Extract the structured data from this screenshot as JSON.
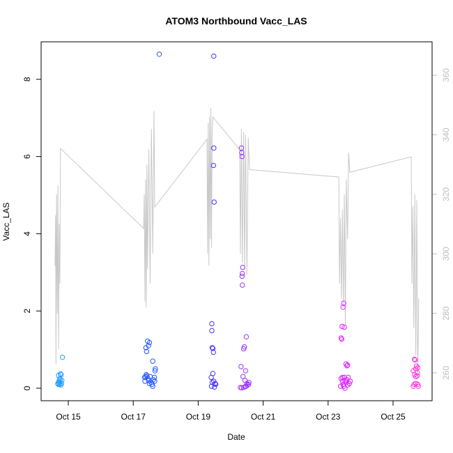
{
  "chart_data": {
    "type": "scatter",
    "title": "ATOM3 Northbound Vacc_LAS",
    "xlabel": "Date",
    "ylabel": "Vacc_LAS",
    "x_unit": "day of October",
    "xlim": [
      14.16,
      26.2
    ],
    "ylim": [
      -0.32,
      8.97
    ],
    "y2lim": [
      250.6,
      371
    ],
    "x_ticks": [
      {
        "value": 15,
        "label": "Oct 15"
      },
      {
        "value": 17,
        "label": "Oct 17"
      },
      {
        "value": 19,
        "label": "Oct 19"
      },
      {
        "value": 21,
        "label": "Oct 21"
      },
      {
        "value": 23,
        "label": "Oct 23"
      },
      {
        "value": 25,
        "label": "Oct 25"
      }
    ],
    "y_ticks": [
      "0",
      "2",
      "4",
      "6",
      "8"
    ],
    "y2_ticks": [
      "260",
      "280",
      "300",
      "320",
      "340",
      "360"
    ],
    "grid": false,
    "legend": "none",
    "point_series": [
      {
        "color": "#1E9BFF",
        "points": [
          [
            14.82,
            0.8
          ],
          [
            14.7,
            0.33
          ],
          [
            14.76,
            0.37
          ],
          [
            14.78,
            0.35
          ],
          [
            14.72,
            0.15
          ],
          [
            14.74,
            0.25
          ],
          [
            14.68,
            0.12
          ],
          [
            14.73,
            0.1
          ],
          [
            14.8,
            0.2
          ],
          [
            14.77,
            0.08
          ],
          [
            14.71,
            0.18
          ],
          [
            14.79,
            0.12
          ],
          [
            14.75,
            0.22
          ],
          [
            14.69,
            0.1
          ]
        ]
      },
      {
        "color": "#2255FF",
        "points": [
          [
            17.8,
            8.65
          ],
          [
            17.44,
            1.22
          ],
          [
            17.5,
            1.18
          ],
          [
            17.47,
            1.1
          ],
          [
            17.39,
            1.05
          ],
          [
            17.41,
            0.95
          ],
          [
            17.6,
            0.7
          ],
          [
            17.68,
            0.5
          ],
          [
            17.67,
            0.45
          ],
          [
            17.35,
            0.28
          ],
          [
            17.38,
            0.3
          ],
          [
            17.42,
            0.32
          ],
          [
            17.45,
            0.25
          ],
          [
            17.48,
            0.2
          ],
          [
            17.52,
            0.3
          ],
          [
            17.55,
            0.15
          ],
          [
            17.58,
            0.1
          ],
          [
            17.62,
            0.22
          ],
          [
            17.65,
            0.28
          ],
          [
            17.36,
            0.18
          ],
          [
            17.4,
            0.35
          ],
          [
            17.5,
            0.12
          ],
          [
            17.6,
            0.05
          ],
          [
            17.66,
            0.18
          ]
        ]
      },
      {
        "color": "#4433FF",
        "points": [
          [
            19.48,
            8.6
          ],
          [
            19.48,
            6.22
          ],
          [
            19.47,
            5.77
          ],
          [
            19.49,
            4.82
          ],
          [
            19.42,
            1.67
          ],
          [
            19.42,
            1.49
          ],
          [
            19.43,
            1.05
          ],
          [
            19.45,
            1.03
          ],
          [
            19.47,
            0.93
          ],
          [
            19.45,
            0.38
          ],
          [
            19.4,
            0.28
          ],
          [
            19.43,
            0.15
          ],
          [
            19.48,
            0.18
          ],
          [
            19.52,
            0.12
          ],
          [
            19.41,
            0.05
          ],
          [
            19.5,
            0.03
          ],
          [
            19.54,
            0.1
          ]
        ]
      },
      {
        "color": "#9933FF",
        "points": [
          [
            20.33,
            6.22
          ],
          [
            20.34,
            6.1
          ],
          [
            20.35,
            6.0
          ],
          [
            20.37,
            3.13
          ],
          [
            20.36,
            2.97
          ],
          [
            20.35,
            2.9
          ],
          [
            20.36,
            2.67
          ],
          [
            20.48,
            1.33
          ],
          [
            20.42,
            1.07
          ],
          [
            20.4,
            1.02
          ],
          [
            20.32,
            0.56
          ],
          [
            20.46,
            0.45
          ],
          [
            20.38,
            0.3
          ],
          [
            20.44,
            0.2
          ],
          [
            20.5,
            0.12
          ],
          [
            20.52,
            0.08
          ],
          [
            20.47,
            0.05
          ],
          [
            20.3,
            0.02
          ],
          [
            20.34,
            0.01
          ],
          [
            20.4,
            0.02
          ],
          [
            20.45,
            0.04
          ],
          [
            20.55,
            0.1
          ],
          [
            20.56,
            0.15
          ]
        ]
      },
      {
        "color": "#DD22FF",
        "points": [
          [
            23.48,
            2.2
          ],
          [
            23.46,
            2.1
          ],
          [
            23.43,
            1.6
          ],
          [
            23.5,
            1.58
          ],
          [
            23.4,
            1.3
          ],
          [
            23.42,
            1.27
          ],
          [
            23.55,
            0.63
          ],
          [
            23.6,
            0.6
          ],
          [
            23.58,
            0.58
          ],
          [
            23.4,
            0.25
          ],
          [
            23.44,
            0.18
          ],
          [
            23.46,
            0.1
          ],
          [
            23.48,
            0.05
          ],
          [
            23.5,
            0.28
          ],
          [
            23.53,
            0.2
          ],
          [
            23.56,
            0.15
          ],
          [
            23.58,
            0.22
          ],
          [
            23.62,
            0.28
          ],
          [
            23.65,
            0.12
          ],
          [
            23.38,
            0.05
          ],
          [
            23.52,
            0.0
          ],
          [
            23.6,
            0.08
          ],
          [
            23.68,
            0.18
          ],
          [
            23.44,
            0.28
          ]
        ]
      },
      {
        "color": "#FF33DD",
        "points": [
          [
            25.66,
            0.75
          ],
          [
            25.68,
            0.73
          ],
          [
            25.72,
            0.57
          ],
          [
            25.76,
            0.53
          ],
          [
            25.7,
            0.5
          ],
          [
            25.62,
            0.45
          ],
          [
            25.75,
            0.4
          ],
          [
            25.66,
            0.35
          ],
          [
            25.7,
            0.3
          ],
          [
            25.74,
            0.32
          ],
          [
            25.65,
            0.1
          ],
          [
            25.7,
            0.12
          ],
          [
            25.76,
            0.1
          ],
          [
            25.62,
            0.05
          ],
          [
            25.78,
            0.05
          ]
        ]
      }
    ],
    "line_series": {
      "axis": "right",
      "color": "#c8c8c8",
      "points": [
        [
          14.59,
          296
        ],
        [
          14.61,
          313
        ],
        [
          14.62,
          263
        ],
        [
          14.64,
          320
        ],
        [
          14.66,
          280
        ],
        [
          14.68,
          323
        ],
        [
          14.7,
          268
        ],
        [
          14.72,
          310
        ],
        [
          14.74,
          290
        ],
        [
          14.76,
          335.4
        ],
        [
          17.32,
          308.5
        ],
        [
          17.34,
          320
        ],
        [
          17.36,
          284
        ],
        [
          17.38,
          325
        ],
        [
          17.4,
          282
        ],
        [
          17.42,
          330
        ],
        [
          17.44,
          295
        ],
        [
          17.48,
          335
        ],
        [
          17.52,
          290
        ],
        [
          17.56,
          342
        ],
        [
          17.6,
          300
        ],
        [
          17.64,
          348
        ],
        [
          17.66,
          315.7
        ],
        [
          19.27,
          338.5
        ],
        [
          19.29,
          300
        ],
        [
          19.31,
          344
        ],
        [
          19.33,
          296
        ],
        [
          19.35,
          346
        ],
        [
          19.37,
          305
        ],
        [
          19.39,
          349
        ],
        [
          19.41,
          302
        ],
        [
          19.43,
          340
        ],
        [
          19.45,
          346
        ],
        [
          20.28,
          335
        ],
        [
          20.3,
          300
        ],
        [
          20.33,
          342
        ],
        [
          20.36,
          297
        ],
        [
          20.4,
          341
        ],
        [
          20.43,
          295
        ],
        [
          20.46,
          340
        ],
        [
          20.5,
          293
        ],
        [
          20.54,
          339
        ],
        [
          20.58,
          328.3
        ],
        [
          23.33,
          325.8
        ],
        [
          23.35,
          290
        ],
        [
          23.38,
          312
        ],
        [
          23.41,
          285
        ],
        [
          23.44,
          315
        ],
        [
          23.47,
          282
        ],
        [
          23.5,
          320
        ],
        [
          23.53,
          276
        ],
        [
          23.56,
          325
        ],
        [
          23.6,
          305
        ],
        [
          23.63,
          334
        ],
        [
          23.67,
          327.4
        ],
        [
          25.56,
          332.6
        ],
        [
          25.58,
          290
        ],
        [
          25.61,
          316
        ],
        [
          25.64,
          275
        ],
        [
          25.67,
          320
        ],
        [
          25.7,
          266
        ],
        [
          25.73,
          318
        ],
        [
          25.76,
          258
        ],
        [
          25.79,
          285
        ]
      ]
    }
  }
}
